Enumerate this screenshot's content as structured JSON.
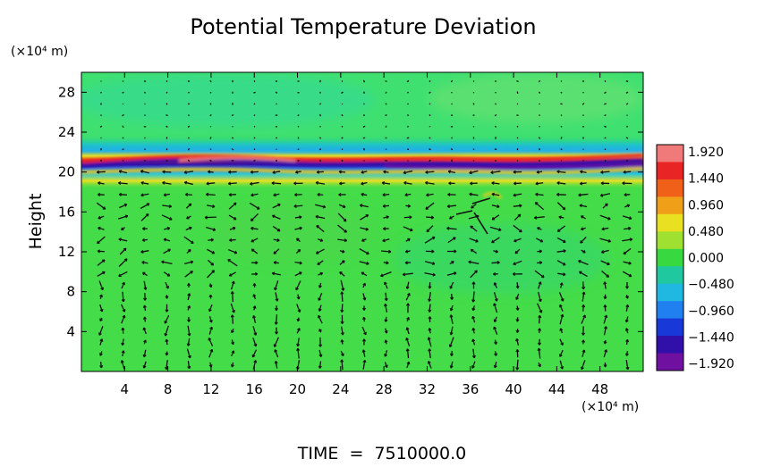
{
  "chart_data": {
    "type": "heatmap",
    "title": "Potential Temperature Deviation",
    "ylabel": "Height",
    "y_unit": "(×10⁴ m)",
    "x_unit": "(×10⁴ m)",
    "footer": "TIME  =  7510000.0",
    "xlim": [
      0,
      52
    ],
    "ylim": [
      0,
      30
    ],
    "x_ticks": [
      4,
      8,
      12,
      16,
      20,
      24,
      28,
      32,
      36,
      40,
      44,
      48
    ],
    "y_ticks": [
      4,
      8,
      12,
      16,
      20,
      24,
      28
    ],
    "colorbar": {
      "ticks": [
        "1.920",
        "1.440",
        "0.960",
        "0.480",
        "0.000",
        "−0.480",
        "−0.960",
        "−1.440",
        "−1.920"
      ],
      "stops": [
        "#f07a7a",
        "#e82424",
        "#f06018",
        "#f0a018",
        "#e8e020",
        "#a0e030",
        "#38d840",
        "#20c8a0",
        "#20b8e0",
        "#2080f0",
        "#1838d8",
        "#3010a8",
        "#7010a0"
      ],
      "range": [
        -1.92,
        1.92
      ]
    },
    "grid": false,
    "overlay": "wind vectors"
  }
}
